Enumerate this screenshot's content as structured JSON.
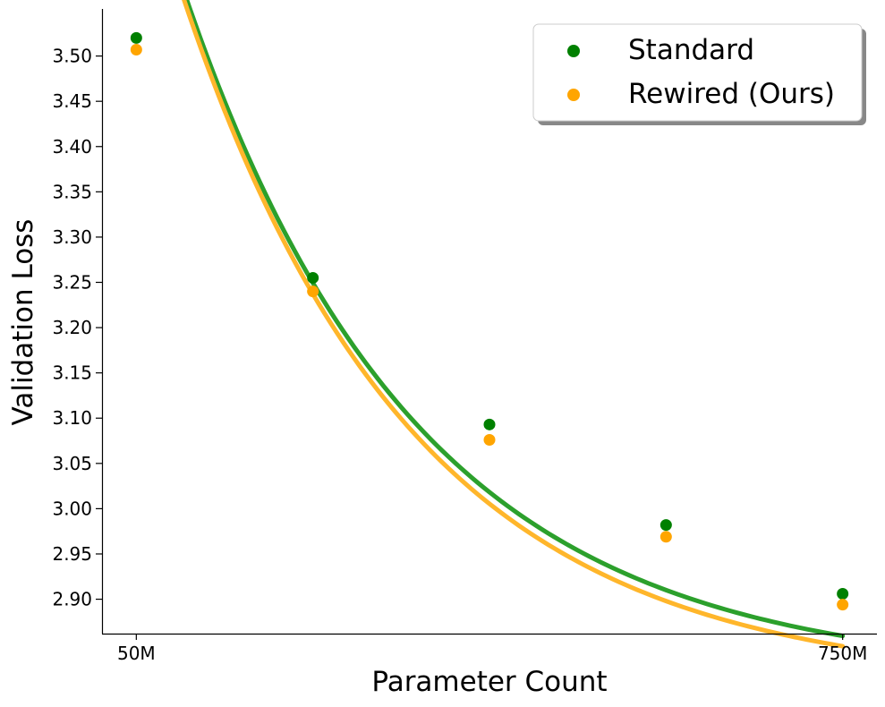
{
  "chart_data": {
    "type": "scatter",
    "title": "",
    "xlabel": "Parameter Count",
    "ylabel": "Validation Loss",
    "x": [
      50,
      225,
      400,
      575,
      750
    ],
    "x_ticks": [
      {
        "value": 50,
        "label": "50M"
      },
      {
        "value": 750,
        "label": "750M"
      }
    ],
    "xlim": [
      16,
      784
    ],
    "ylim": [
      2.862,
      3.552
    ],
    "y_ticks": [
      "2.90",
      "2.95",
      "3.00",
      "3.05",
      "3.10",
      "3.15",
      "3.20",
      "3.25",
      "3.30",
      "3.35",
      "3.40",
      "3.45",
      "3.50"
    ],
    "grid": false,
    "legend": "top-right",
    "series": [
      {
        "name": "Standard",
        "color": "#008000",
        "line_color": "#2ca02c",
        "values": [
          3.52,
          3.255,
          3.093,
          2.982,
          2.906
        ],
        "fit": {
          "a": 0.9283,
          "b": 0.00434,
          "c": 2.815
        }
      },
      {
        "name": "Rewired (Ours)",
        "color": "#ffa500",
        "line_color": "#ffb62b",
        "values": [
          3.507,
          3.24,
          3.076,
          2.969,
          2.894
        ],
        "fit": {
          "a": 0.9317,
          "b": 0.00439,
          "c": 2.805
        }
      }
    ]
  }
}
